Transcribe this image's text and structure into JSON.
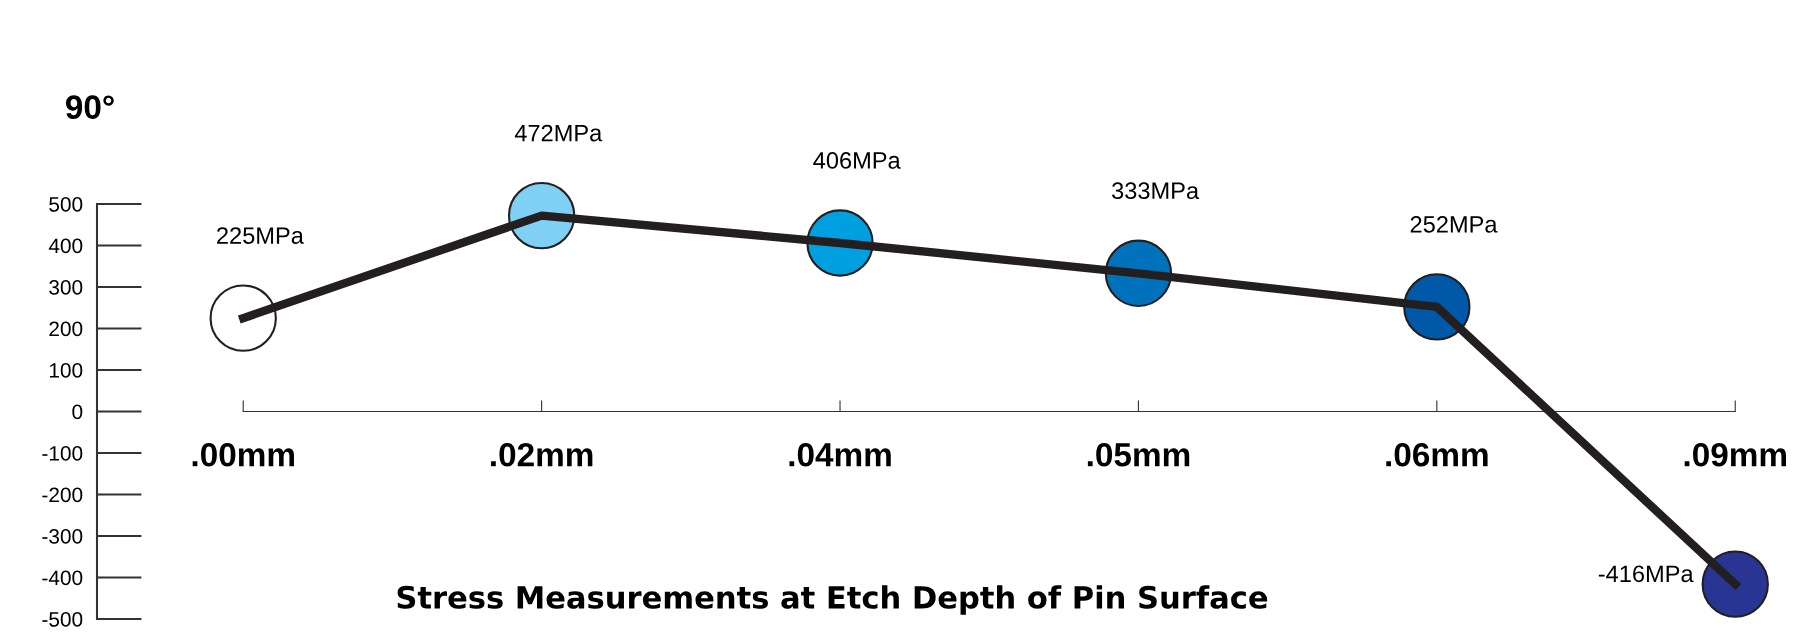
{
  "chart_data": {
    "type": "line",
    "title": "Stress Measurements at Etch Depth of Pin Surface",
    "annotations": [
      "90°"
    ],
    "categories": [
      ".00mm",
      ".02mm",
      ".04mm",
      ".05mm",
      ".06mm",
      ".09mm"
    ],
    "series": [
      {
        "color": "#231f20",
        "line_style": "solid",
        "values": [
          225,
          472,
          406,
          333,
          252,
          -416
        ]
      },
      {
        "type": "scatter",
        "marker": "circle",
        "colors": [
          "#ffffff",
          "#7fd0f4",
          "#00a0e0",
          "#0072bc",
          "#0058a8",
          "#283593"
        ],
        "values": [
          225,
          472,
          406,
          333,
          252,
          -416
        ],
        "value_labels": [
          "225MPa",
          "472MPa",
          "406MPa",
          "333MPa",
          "252MPa",
          "-416MPa"
        ]
      }
    ],
    "ylim": [
      -500,
      500
    ],
    "yticks": [
      -500,
      -400,
      -300,
      -200,
      -100,
      0,
      100,
      200,
      300,
      400,
      500
    ],
    "grid": false
  }
}
